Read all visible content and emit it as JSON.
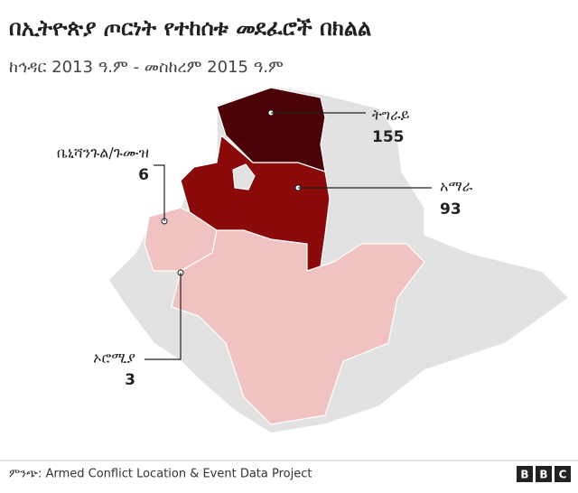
{
  "header": {
    "title": "በኢትዮጵያ ጦርነት የተከሰቱ መደፈሮች በክልል",
    "subtitle": "ከኅዳር 2013 ዓ.ም - መስከረም 2015 ዓ.ም"
  },
  "regions": [
    {
      "name": "ትግራይ",
      "value": 155,
      "color": "#4a0206"
    },
    {
      "name": "አማራ",
      "value": 93,
      "color": "#8a0a0a"
    },
    {
      "name": "ቤኒሻንጉል/ጉሙዝ",
      "value": 6,
      "color": "#f0c2c2"
    },
    {
      "name": "ኦሮሚያ",
      "value": 3,
      "color": "#f0c2c2"
    }
  ],
  "source": "ምንጭ: Armed Conflict Location & Event Data Project",
  "logo": [
    "B",
    "B",
    "C"
  ]
}
